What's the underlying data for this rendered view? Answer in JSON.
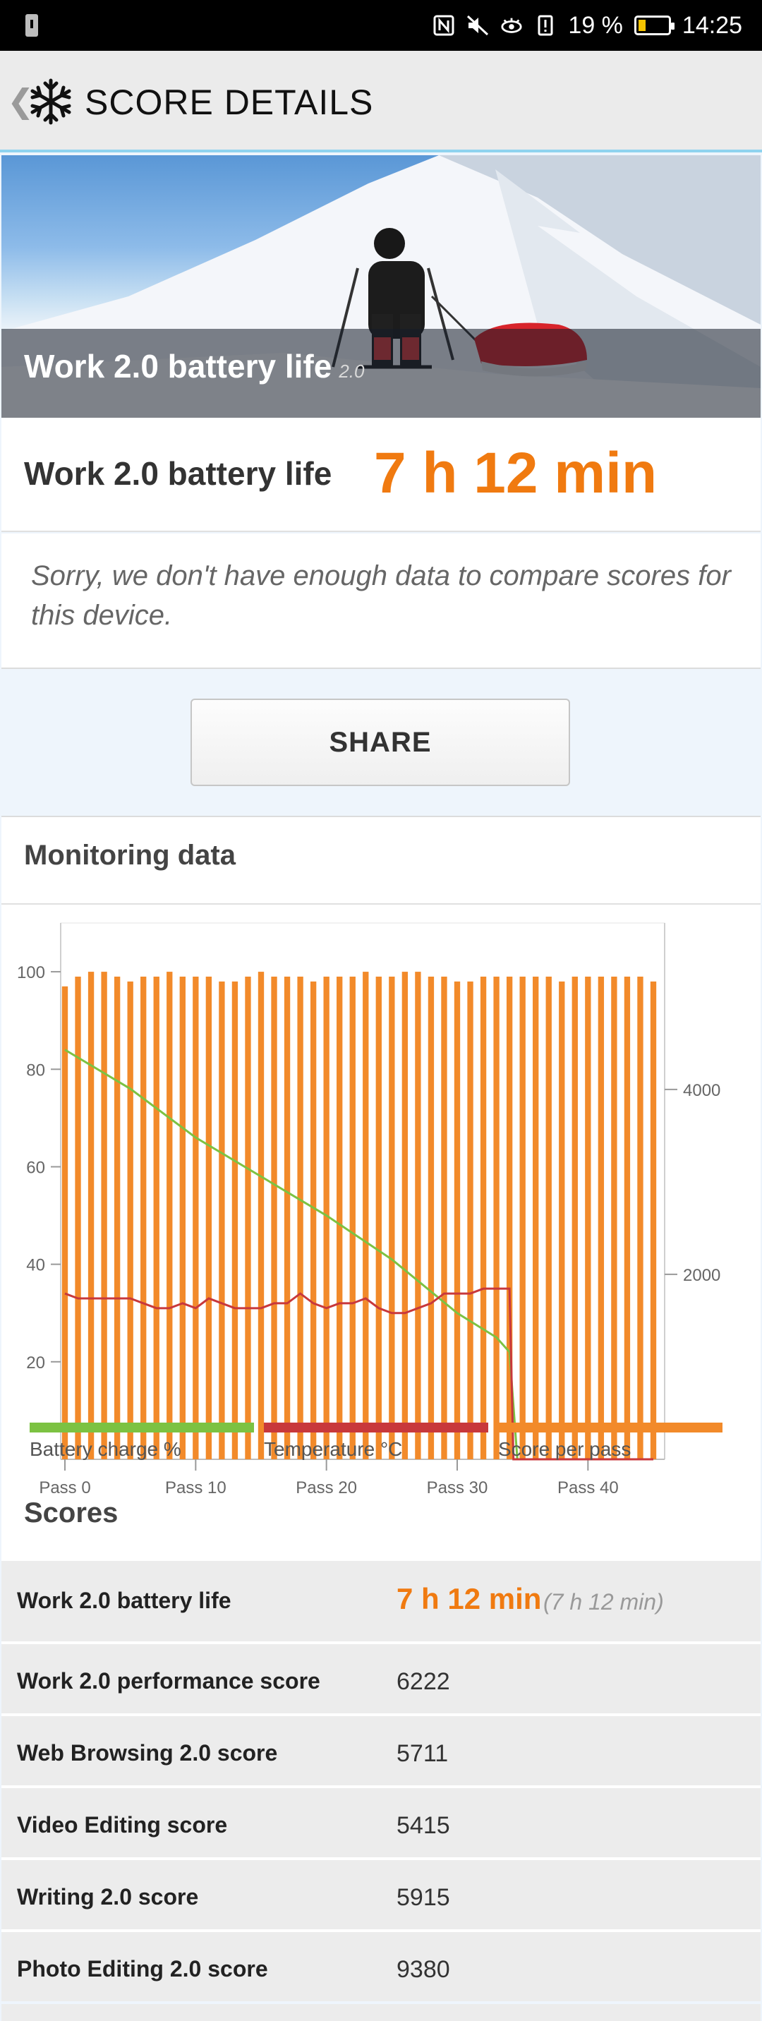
{
  "status_bar": {
    "battery_percent": "19 %",
    "time": "14:25",
    "icons": [
      "nfc-icon",
      "mute-icon",
      "eye-comfort-icon",
      "alert-icon",
      "battery-icon"
    ]
  },
  "app_bar": {
    "title": "SCORE DETAILS",
    "back_icon": "chevron-left-icon",
    "logo_icon": "snowflake-icon"
  },
  "hero": {
    "title": "Work 2.0 battery life",
    "version": "2.0"
  },
  "result": {
    "label": "Work 2.0 battery life",
    "value": "7 h 12 min"
  },
  "compare_message": "Sorry, we don't have enough data to compare scores for this device.",
  "share_label": "SHARE",
  "monitoring": {
    "title": "Monitoring data",
    "legend": [
      {
        "label": "Battery charge %",
        "color": "#7cc242"
      },
      {
        "label": "Temperature °C",
        "color": "#c8383b"
      },
      {
        "label": "Score per pass",
        "color": "#f28a2a"
      }
    ]
  },
  "chart_data": {
    "type": "bar",
    "x_tick_labels": [
      "Pass 0",
      "Pass 10",
      "Pass 20",
      "Pass 30",
      "Pass 40"
    ],
    "x_ticks": [
      0,
      10,
      20,
      30,
      40
    ],
    "left_ticks": [
      20,
      40,
      60,
      80,
      100
    ],
    "left_ylim": [
      0,
      110
    ],
    "right_ticks": [
      2000,
      4000
    ],
    "right_ylim": [
      0,
      5800
    ],
    "bars": {
      "name": "Score per pass",
      "x": [
        0,
        1,
        2,
        3,
        4,
        5,
        6,
        7,
        8,
        9,
        10,
        11,
        12,
        13,
        14,
        15,
        16,
        17,
        18,
        19,
        20,
        21,
        22,
        23,
        24,
        25,
        26,
        27,
        28,
        29,
        30,
        31,
        32,
        33,
        34,
        35,
        36,
        37,
        38,
        39,
        40,
        41,
        42,
        43,
        44,
        45
      ],
      "values": [
        97,
        99,
        100,
        100,
        99,
        98,
        99,
        99,
        100,
        99,
        99,
        99,
        98,
        98,
        99,
        100,
        99,
        99,
        99,
        98,
        99,
        99,
        99,
        100,
        99,
        99,
        100,
        100,
        99,
        99,
        98,
        98,
        99,
        99,
        99,
        99,
        99,
        99,
        98,
        99,
        99,
        99,
        99,
        99,
        99,
        98
      ]
    },
    "battery": {
      "name": "Battery charge %",
      "x": [
        0,
        5,
        10,
        15,
        20,
        25,
        30,
        33,
        34,
        34.6
      ],
      "values": [
        84,
        76,
        66,
        58,
        50,
        41,
        30,
        25,
        22,
        0
      ]
    },
    "temperature": {
      "name": "Temperature °C",
      "x": [
        0,
        1,
        2,
        3,
        4,
        5,
        6,
        7,
        8,
        9,
        10,
        11,
        12,
        13,
        14,
        15,
        16,
        17,
        18,
        19,
        20,
        21,
        22,
        23,
        24,
        25,
        26,
        27,
        28,
        29,
        30,
        31,
        32,
        33,
        34,
        34.3,
        35,
        40,
        45
      ],
      "values": [
        34,
        33,
        33,
        33,
        33,
        33,
        32,
        31,
        31,
        32,
        31,
        33,
        32,
        31,
        31,
        31,
        32,
        32,
        34,
        32,
        31,
        32,
        32,
        33,
        31,
        30,
        30,
        31,
        32,
        34,
        34,
        34,
        35,
        35,
        35,
        0,
        0,
        0,
        0
      ]
    }
  },
  "scores": {
    "title": "Scores",
    "rows": [
      {
        "label": "Work 2.0 battery life",
        "value": "7 h 12 min",
        "sub": "(7 h 12 min)"
      },
      {
        "label": "Work 2.0 performance score",
        "value": "6222"
      },
      {
        "label": "Web Browsing 2.0 score",
        "value": "5711"
      },
      {
        "label": "Video Editing score",
        "value": "5415"
      },
      {
        "label": "Writing 2.0 score",
        "value": "5915"
      },
      {
        "label": "Photo Editing 2.0 score",
        "value": "9380"
      }
    ]
  }
}
